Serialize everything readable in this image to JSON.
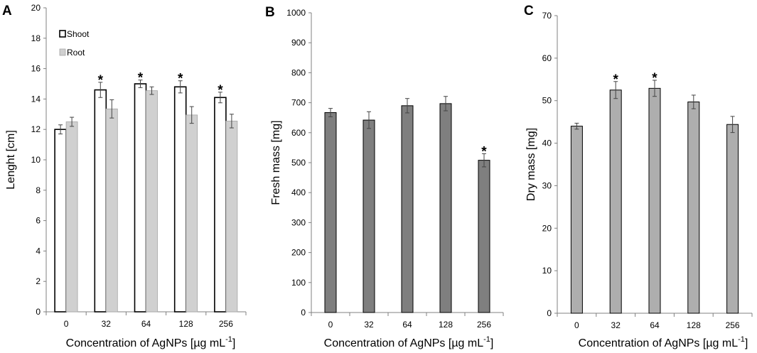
{
  "figure": {
    "panels": [
      "A",
      "B",
      "C"
    ],
    "xlabel_main": "Concentration of  AgNPs  [µg mL",
    "xlabel_sup": "-1",
    "xlabel_end": "]"
  },
  "colors": {
    "shoot": "#ffffff",
    "root": "#d0d0d0",
    "fresh": "#7f7f7f",
    "dry": "#aeaeae",
    "axis": "#808080"
  },
  "chart_data": [
    {
      "type": "bar",
      "panel": "A",
      "categories": [
        "0",
        "32",
        "64",
        "128",
        "256"
      ],
      "series": [
        {
          "name": "Shoot",
          "values": [
            12.0,
            14.6,
            15.0,
            14.8,
            14.1
          ],
          "errors": [
            0.3,
            0.5,
            0.25,
            0.4,
            0.35
          ],
          "significant": [
            false,
            true,
            true,
            true,
            true
          ]
        },
        {
          "name": "Root",
          "values": [
            12.5,
            13.35,
            14.55,
            12.95,
            12.55
          ],
          "errors": [
            0.3,
            0.6,
            0.25,
            0.55,
            0.45
          ],
          "significant": [
            false,
            false,
            false,
            false,
            false
          ]
        }
      ],
      "ylabel": "Lenght [cm]",
      "ylim": [
        0,
        20
      ],
      "yticks": [
        "0",
        "2",
        "4",
        "6",
        "8",
        "10",
        "12",
        "14",
        "16",
        "18",
        "20"
      ],
      "xlabel": "Concentration of  AgNPs  [µg mL-1]",
      "legend": "top-left",
      "star": "*"
    },
    {
      "type": "bar",
      "panel": "B",
      "categories": [
        "0",
        "32",
        "64",
        "128",
        "256"
      ],
      "values": [
        667,
        642,
        690,
        697,
        508
      ],
      "errors": [
        14,
        28,
        24,
        24,
        22
      ],
      "significant": [
        false,
        false,
        false,
        false,
        true
      ],
      "ylabel": "Fresh mass  [mg]",
      "ylim": [
        0,
        1000
      ],
      "yticks": [
        "0",
        "100",
        "200",
        "300",
        "400",
        "500",
        "600",
        "700",
        "800",
        "900",
        "1000"
      ],
      "xlabel": "Concentration of AgNPs [µg mL-1]",
      "star": "*"
    },
    {
      "type": "bar",
      "panel": "C",
      "categories": [
        "0",
        "32",
        "64",
        "128",
        "256"
      ],
      "values": [
        44.0,
        52.5,
        52.9,
        49.7,
        44.4
      ],
      "errors": [
        0.7,
        2.0,
        1.9,
        1.6,
        1.9
      ],
      "significant": [
        false,
        true,
        true,
        false,
        false
      ],
      "ylabel": "Dry mass [mg]",
      "ylim": [
        0,
        70
      ],
      "yticks": [
        "0",
        "10",
        "20",
        "30",
        "40",
        "50",
        "60",
        "70"
      ],
      "xlabel": "Concentration of AgNPs [µg mL-1]",
      "star": "*"
    }
  ]
}
